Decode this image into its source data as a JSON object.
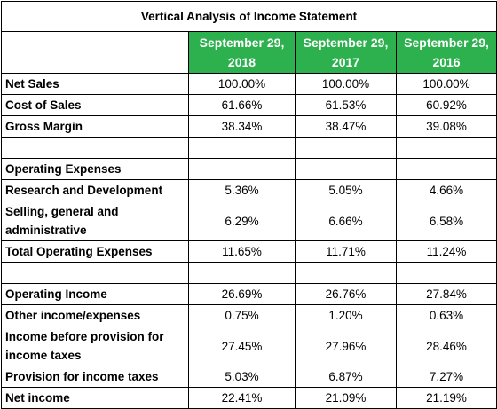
{
  "title": "Vertical Analysis of Income Statement",
  "headers": [
    "September 29, 2018",
    "September 29, 2017",
    "September 29, 2016"
  ],
  "sections": [
    [
      {
        "label": "Net Sales",
        "values": [
          "100.00%",
          "100.00%",
          "100.00%"
        ]
      },
      {
        "label": "Cost of Sales",
        "values": [
          "61.66%",
          "61.53%",
          "60.92%"
        ]
      },
      {
        "label": "Gross Margin",
        "values": [
          "38.34%",
          "38.47%",
          "39.08%"
        ]
      }
    ],
    [
      {
        "label": "Operating Expenses"
      },
      {
        "label": "Research and Development",
        "values": [
          "5.36%",
          "5.05%",
          "4.66%"
        ]
      },
      {
        "label": "Selling, general and administrative",
        "values": [
          "6.29%",
          "6.66%",
          "6.58%"
        ]
      },
      {
        "label": "Total Operating Expenses",
        "values": [
          "11.65%",
          "11.71%",
          "11.24%"
        ]
      }
    ],
    [
      {
        "label": "Operating Income",
        "values": [
          "26.69%",
          "26.76%",
          "27.84%"
        ]
      },
      {
        "label": "Other income/expenses",
        "values": [
          "0.75%",
          "1.20%",
          "0.63%"
        ]
      },
      {
        "label": "Income before provision for income taxes",
        "values": [
          "27.45%",
          "27.96%",
          "28.46%"
        ]
      },
      {
        "label": "Provision for income taxes",
        "values": [
          "5.03%",
          "6.87%",
          "7.27%"
        ]
      },
      {
        "label": "Net income",
        "values": [
          "22.41%",
          "21.09%",
          "21.19%"
        ]
      }
    ]
  ]
}
